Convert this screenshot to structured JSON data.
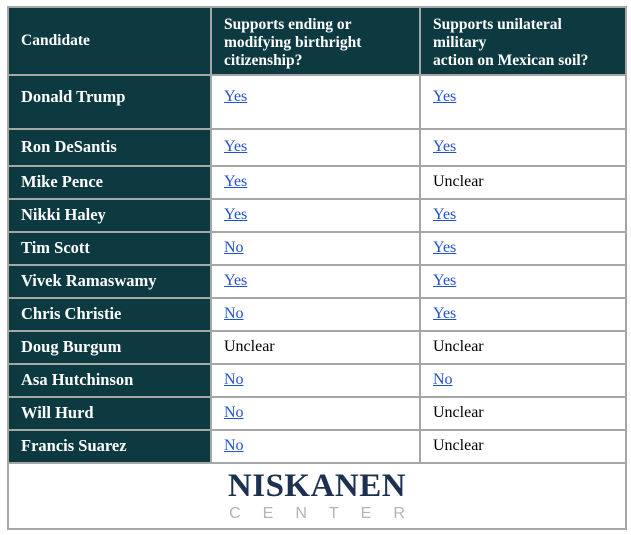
{
  "chart_data": {
    "type": "table",
    "columns": [
      "Candidate",
      "Supports ending or modifying birthright citizenship?",
      "Supports unilateral military action on Mexican soil?"
    ],
    "rows": [
      [
        "Donald Trump",
        "Yes",
        "Yes"
      ],
      [
        "Ron DeSantis",
        "Yes",
        "Yes"
      ],
      [
        "Mike Pence",
        "Yes",
        "Unclear"
      ],
      [
        "Nikki Haley",
        "Yes",
        "Yes"
      ],
      [
        "Tim Scott",
        "No",
        "Yes"
      ],
      [
        "Vivek Ramaswamy",
        "Yes",
        "Yes"
      ],
      [
        "Chris Christie",
        "No",
        "Yes"
      ],
      [
        "Doug Burgum",
        "Unclear",
        "Unclear"
      ],
      [
        "Asa Hutchinson",
        "No",
        "No"
      ],
      [
        "Will Hurd",
        "No",
        "Unclear"
      ],
      [
        "Francis Suarez",
        "No",
        "Unclear"
      ]
    ],
    "notes": "Yes/No values shown as blue hyperlinks; Unclear shown as plain black text"
  },
  "table": {
    "columns": [
      {
        "label": "Candidate"
      },
      {
        "label": "Supports ending or\nmodifying birthright\ncitizenship?"
      },
      {
        "label": "Supports unilateral military\naction on Mexican soil?"
      }
    ],
    "rows": [
      {
        "candidate": "Donald Trump",
        "answers": [
          {
            "text": "Yes",
            "link": true
          },
          {
            "text": "Yes",
            "link": true
          }
        ]
      },
      {
        "candidate": "Ron DeSantis",
        "answers": [
          {
            "text": "Yes",
            "link": true
          },
          {
            "text": "Yes",
            "link": true
          }
        ]
      },
      {
        "candidate": "Mike Pence",
        "answers": [
          {
            "text": "Yes",
            "link": true
          },
          {
            "text": "Unclear",
            "link": false
          }
        ]
      },
      {
        "candidate": "Nikki Haley",
        "answers": [
          {
            "text": "Yes",
            "link": true
          },
          {
            "text": "Yes",
            "link": true
          }
        ]
      },
      {
        "candidate": "Tim Scott",
        "answers": [
          {
            "text": "No",
            "link": true
          },
          {
            "text": "Yes",
            "link": true
          }
        ]
      },
      {
        "candidate": "Vivek Ramaswamy",
        "answers": [
          {
            "text": "Yes",
            "link": true
          },
          {
            "text": "Yes",
            "link": true
          }
        ]
      },
      {
        "candidate": "Chris Christie",
        "answers": [
          {
            "text": "No",
            "link": true
          },
          {
            "text": "Yes",
            "link": true
          }
        ]
      },
      {
        "candidate": "Doug Burgum",
        "answers": [
          {
            "text": "Unclear",
            "link": false
          },
          {
            "text": "Unclear",
            "link": false
          }
        ]
      },
      {
        "candidate": "Asa Hutchinson",
        "answers": [
          {
            "text": "No",
            "link": true
          },
          {
            "text": "No",
            "link": true
          }
        ]
      },
      {
        "candidate": "Will Hurd",
        "answers": [
          {
            "text": "No",
            "link": true
          },
          {
            "text": "Unclear",
            "link": false
          }
        ]
      },
      {
        "candidate": "Francis Suarez",
        "answers": [
          {
            "text": "No",
            "link": true
          },
          {
            "text": "Unclear",
            "link": false
          }
        ]
      }
    ]
  },
  "footer": {
    "logo_top": "NISKANEN",
    "logo_bottom": "CENTER"
  },
  "colors": {
    "header_bg": "#0c3a40",
    "header_text": "#ffffff",
    "cell_text": "#000000",
    "link_blue": "#2052d0",
    "border_gray": "#a6a6a6",
    "logo_navy": "#1d304f",
    "logo_gray": "#b4b4b7"
  }
}
